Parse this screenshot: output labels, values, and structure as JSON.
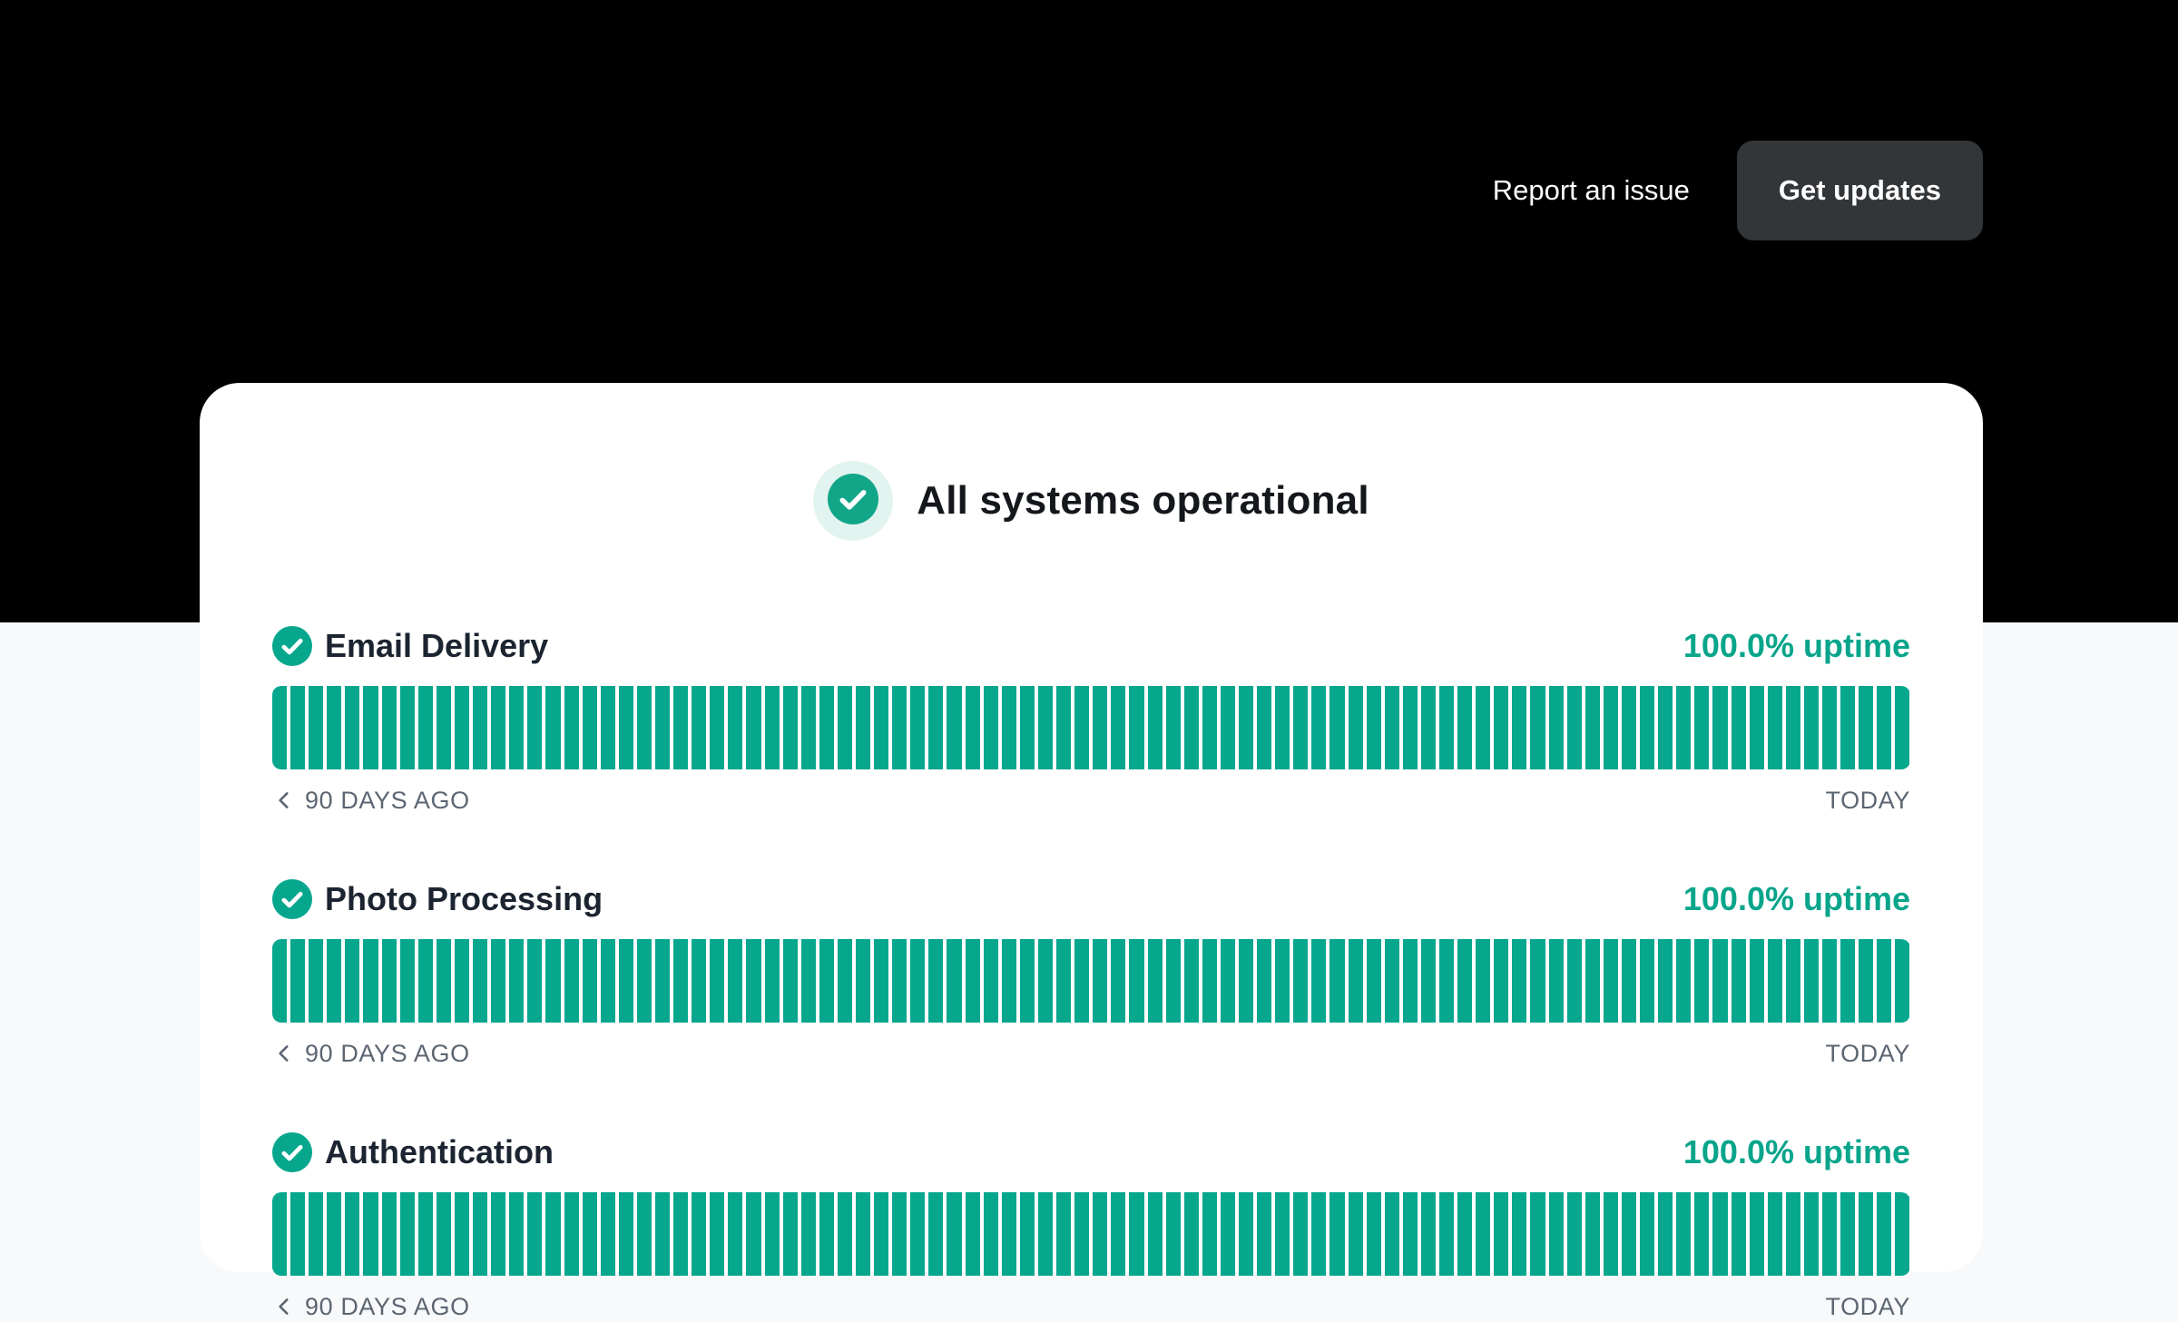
{
  "nav": {
    "report_issue_label": "Report an issue",
    "get_updates_label": "Get updates"
  },
  "banner": {
    "title": "All systems operational",
    "icon": "check-circle-icon"
  },
  "timeline": {
    "days": 90,
    "left_label": "90 DAYS AGO",
    "right_label": "TODAY",
    "nav_icon": "chevron-left-icon"
  },
  "services": [
    {
      "name": "Email Delivery",
      "status": "operational",
      "uptime_label": "100.0% uptime"
    },
    {
      "name": "Photo Processing",
      "status": "operational",
      "uptime_label": "100.0% uptime"
    },
    {
      "name": "Authentication",
      "status": "operational",
      "uptime_label": "100.0% uptime"
    }
  ],
  "colors": {
    "accent_teal": "#07A78E",
    "uptime_text_green": "#09A58B",
    "halo_bg": "#E2F4EF",
    "hero_bg": "#000000",
    "page_bg": "#F7F9FB",
    "card_bg": "#FFFFFF",
    "button_bg": "#333639",
    "muted_label": "#5C6672"
  }
}
